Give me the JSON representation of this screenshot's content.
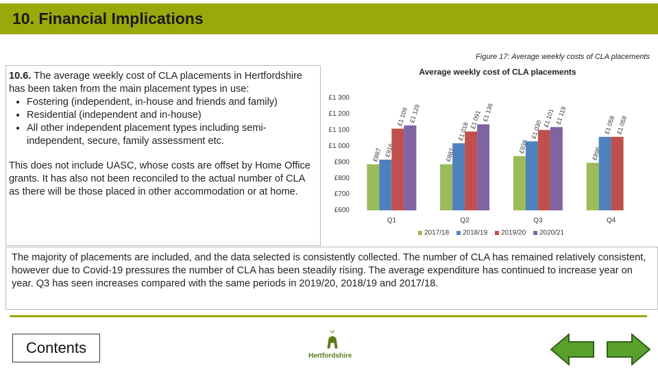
{
  "header": {
    "title": "10. Financial Implications"
  },
  "figure_caption": "Figure 17: Average weekly costs of CLA placements",
  "text_box": {
    "section_number": "10.6.",
    "intro": "The average weekly cost of CLA placements in Hertfordshire has been taken from the main placement types in use:",
    "bullets": [
      "Fostering (independent, in-house and friends and family)",
      "Residential (independent and in-house)",
      "All other independent placement types including semi-independent, secure, family assessment etc."
    ],
    "note": "This does not include UASC, whose costs are offset by Home Office grants. It has also not been reconciled to the actual number of CLA as there will be those placed in other accommodation or at home."
  },
  "chart_data": {
    "type": "bar",
    "title": "Average weekly cost of CLA placements",
    "categories": [
      "Q1",
      "Q2",
      "Q3",
      "Q4"
    ],
    "series": [
      {
        "name": "2017/18",
        "color": "#9bbb59",
        "values": [
          887,
          887,
          938,
          896
        ],
        "value_labels": [
          "£887",
          "£887",
          "£938",
          "£896"
        ]
      },
      {
        "name": "2018/19",
        "color": "#4f81bd",
        "values": [
          916,
          1018,
          1030,
          1058
        ],
        "value_labels": [
          "£916",
          "£1 018",
          "£1 030",
          "£1 058"
        ]
      },
      {
        "name": "2019/20",
        "color": "#c0504d",
        "values": [
          1109,
          1091,
          1101,
          1058
        ],
        "value_labels": [
          "£1 109",
          "£1 091",
          "£1 101",
          "£1 058"
        ]
      },
      {
        "name": "2020/21",
        "color": "#8064a2",
        "values": [
          1129,
          1136,
          1119,
          null
        ],
        "value_labels": [
          "£1 129",
          "£1 136",
          "£1 119",
          null
        ]
      }
    ],
    "ylim": [
      600,
      1300
    ],
    "yticks": [
      {
        "value": 600,
        "label": "£600"
      },
      {
        "value": 700,
        "label": "£700"
      },
      {
        "value": 800,
        "label": "£800"
      },
      {
        "value": 900,
        "label": "£900"
      },
      {
        "value": 1000,
        "label": "£1 000"
      },
      {
        "value": 1100,
        "label": "£1 100"
      },
      {
        "value": 1200,
        "label": "£1 200"
      },
      {
        "value": 1300,
        "label": "£1 300"
      }
    ],
    "grid": false
  },
  "summary": "The majority of placements are included, and the data selected is consistently collected. The number of CLA has remained relatively consistent, however due to Covid-19 pressures the number of CLA has been steadily rising. The average expenditure has continued to increase year on year. Q3 has seen increases compared with the same periods in 2019/20, 2018/19 and 2017/18.",
  "footer": {
    "contents_button": "Contents",
    "logo_text": "Hertfordshire"
  }
}
